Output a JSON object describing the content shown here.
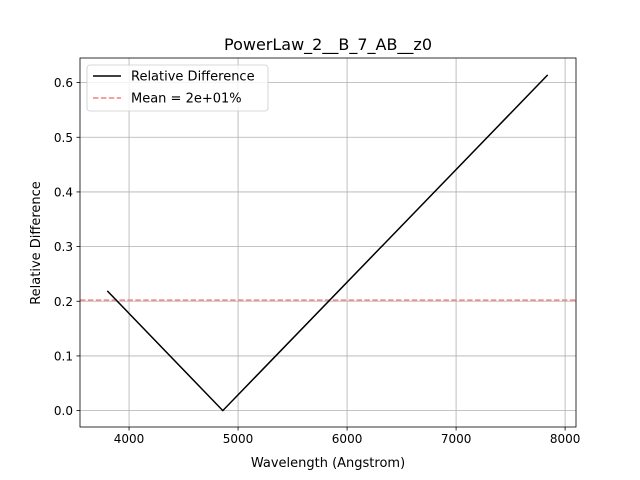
{
  "chart_data": {
    "type": "line",
    "title": "PowerLaw_2__B_7_AB__z0",
    "xlabel": "Wavelength (Angstrom)",
    "ylabel": "Relative Difference",
    "xlim": [
      3550,
      8100
    ],
    "ylim": [
      -0.03,
      0.645
    ],
    "xticks": [
      4000,
      5000,
      6000,
      7000,
      8000
    ],
    "yticks": [
      0.0,
      0.1,
      0.2,
      0.3,
      0.4,
      0.5,
      0.6
    ],
    "xtick_labels": [
      "4000",
      "5000",
      "6000",
      "7000",
      "8000"
    ],
    "ytick_labels": [
      "0.0",
      "0.1",
      "0.2",
      "0.3",
      "0.4",
      "0.5",
      "0.6"
    ],
    "grid": true,
    "legend_position": "upper-left",
    "series": [
      {
        "name": "Relative Difference",
        "style": "solid",
        "color": "#000000",
        "x": [
          3800,
          4860,
          7840
        ],
        "y": [
          0.219,
          0.0,
          0.614
        ]
      }
    ],
    "hlines": [
      {
        "name": "Mean = 2e+01%",
        "style": "dashed",
        "color": "#f08080",
        "y": 0.202
      }
    ]
  }
}
